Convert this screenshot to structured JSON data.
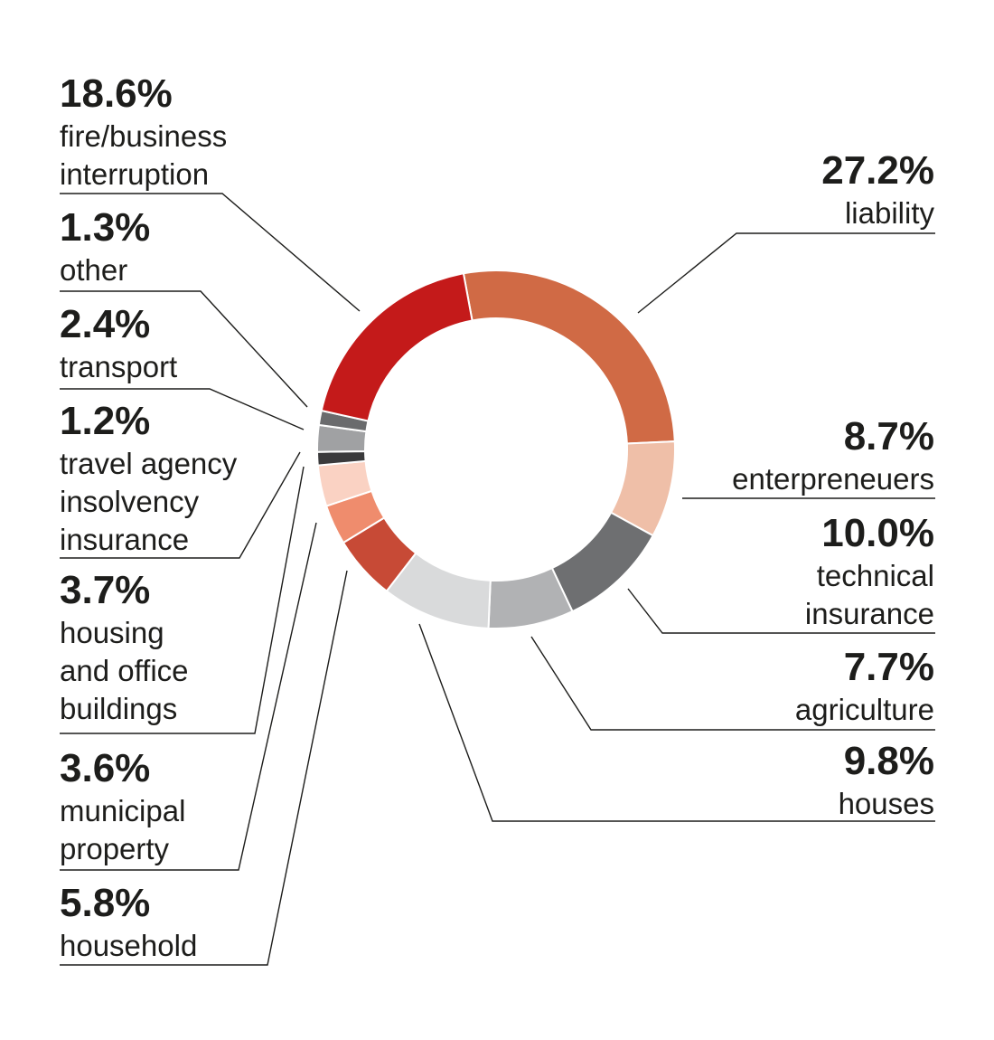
{
  "chart_data": {
    "type": "pie",
    "variant": "donut",
    "title": "",
    "legend": "none",
    "slices": [
      {
        "key": "liability",
        "value": 27.2,
        "value_label": "27.2%",
        "lines": [
          "liability"
        ],
        "color": "#D06A45"
      },
      {
        "key": "enterpreneuers",
        "value": 8.7,
        "value_label": "8.7%",
        "lines": [
          "enterpreneuers"
        ],
        "color": "#EFBFA8"
      },
      {
        "key": "technical-insurance",
        "value": 10.0,
        "value_label": "10.0%",
        "lines": [
          "technical",
          "insurance"
        ],
        "color": "#6E6F71"
      },
      {
        "key": "agriculture",
        "value": 7.7,
        "value_label": "7.7%",
        "lines": [
          "agriculture"
        ],
        "color": "#B1B2B4"
      },
      {
        "key": "houses",
        "value": 9.8,
        "value_label": "9.8%",
        "lines": [
          "houses"
        ],
        "color": "#D9DADB"
      },
      {
        "key": "household",
        "value": 5.8,
        "value_label": "5.8%",
        "lines": [
          "household"
        ],
        "color": "#C74A36"
      },
      {
        "key": "municipal-property",
        "value": 3.6,
        "value_label": "3.6%",
        "lines": [
          "municipal",
          "property"
        ],
        "color": "#EF8C6D"
      },
      {
        "key": "housing-and-office-buildings",
        "value": 3.7,
        "value_label": "3.7%",
        "lines": [
          "housing",
          "and office",
          "buildings"
        ],
        "color": "#FAD2C3"
      },
      {
        "key": "travel-agency-insolvency-insurance",
        "value": 1.2,
        "value_label": "1.2%",
        "lines": [
          "travel agency",
          "insolvency",
          "insurance"
        ],
        "color": "#3A3A3C"
      },
      {
        "key": "transport",
        "value": 2.4,
        "value_label": "2.4%",
        "lines": [
          "transport"
        ],
        "color": "#A0A1A3"
      },
      {
        "key": "other",
        "value": 1.3,
        "value_label": "1.3%",
        "lines": [
          "other"
        ],
        "color": "#6A6B6D"
      },
      {
        "key": "fire-business-interruption",
        "value": 18.6,
        "value_label": "18.6%",
        "lines": [
          "fire/business",
          "interruption"
        ],
        "color": "#C41A1A"
      }
    ]
  }
}
